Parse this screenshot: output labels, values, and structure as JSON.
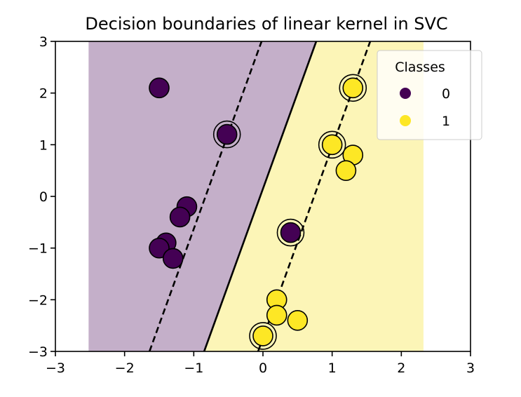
{
  "chart_data": {
    "type": "scatter",
    "title": "Decision boundaries of linear kernel in SVC",
    "xlim": [
      -3,
      3
    ],
    "ylim": [
      -3,
      3
    ],
    "xticks": [
      -3,
      -2,
      -1,
      0,
      1,
      2,
      3
    ],
    "yticks": [
      -3,
      -2,
      -1,
      0,
      1,
      2,
      3
    ],
    "xtick_labels": [
      "−3",
      "−2",
      "−1",
      "0",
      "1",
      "2",
      "3"
    ],
    "ytick_labels": [
      "−3",
      "−2",
      "−1",
      "0",
      "1",
      "2",
      "3"
    ],
    "grid": false,
    "legend": {
      "title": "Classes",
      "placement": "top-right",
      "entries": [
        {
          "label": "0",
          "color": "#440154"
        },
        {
          "label": "1",
          "color": "#fde725"
        }
      ]
    },
    "decision_region": {
      "x_extent": [
        -2.52,
        2.32
      ],
      "class0_color": "#c4afc9",
      "class1_color": "#fcf5b7"
    },
    "decision_boundary": {
      "points": [
        [
          -0.85,
          -3
        ],
        [
          0.77,
          3
        ]
      ]
    },
    "margins": [
      {
        "points": [
          [
            -1.64,
            -3
          ],
          [
            -0.02,
            3
          ]
        ]
      },
      {
        "points": [
          [
            -0.07,
            -3
          ],
          [
            1.55,
            3
          ]
        ]
      }
    ],
    "series": [
      {
        "name": "0",
        "color": "#440154",
        "points": [
          [
            -1.5,
            2.1
          ],
          [
            -0.52,
            1.2
          ],
          [
            -1.1,
            -0.2
          ],
          [
            -1.2,
            -0.4
          ],
          [
            -1.4,
            -0.9
          ],
          [
            -1.5,
            -1.0
          ],
          [
            -1.3,
            -1.2
          ],
          [
            0.4,
            -0.7
          ]
        ]
      },
      {
        "name": "1",
        "color": "#fde725",
        "points": [
          [
            1.3,
            2.1
          ],
          [
            1.0,
            1.0
          ],
          [
            1.3,
            0.8
          ],
          [
            1.2,
            0.5
          ],
          [
            0.2,
            -2.0
          ],
          [
            0.2,
            -2.3
          ],
          [
            0.5,
            -2.4
          ],
          [
            0.0,
            -2.7
          ]
        ]
      }
    ],
    "support_vectors": [
      [
        1.3,
        2.1
      ],
      [
        -0.52,
        1.2
      ],
      [
        1.0,
        1.0
      ],
      [
        0.4,
        -0.7
      ],
      [
        0.0,
        -2.7
      ]
    ]
  }
}
